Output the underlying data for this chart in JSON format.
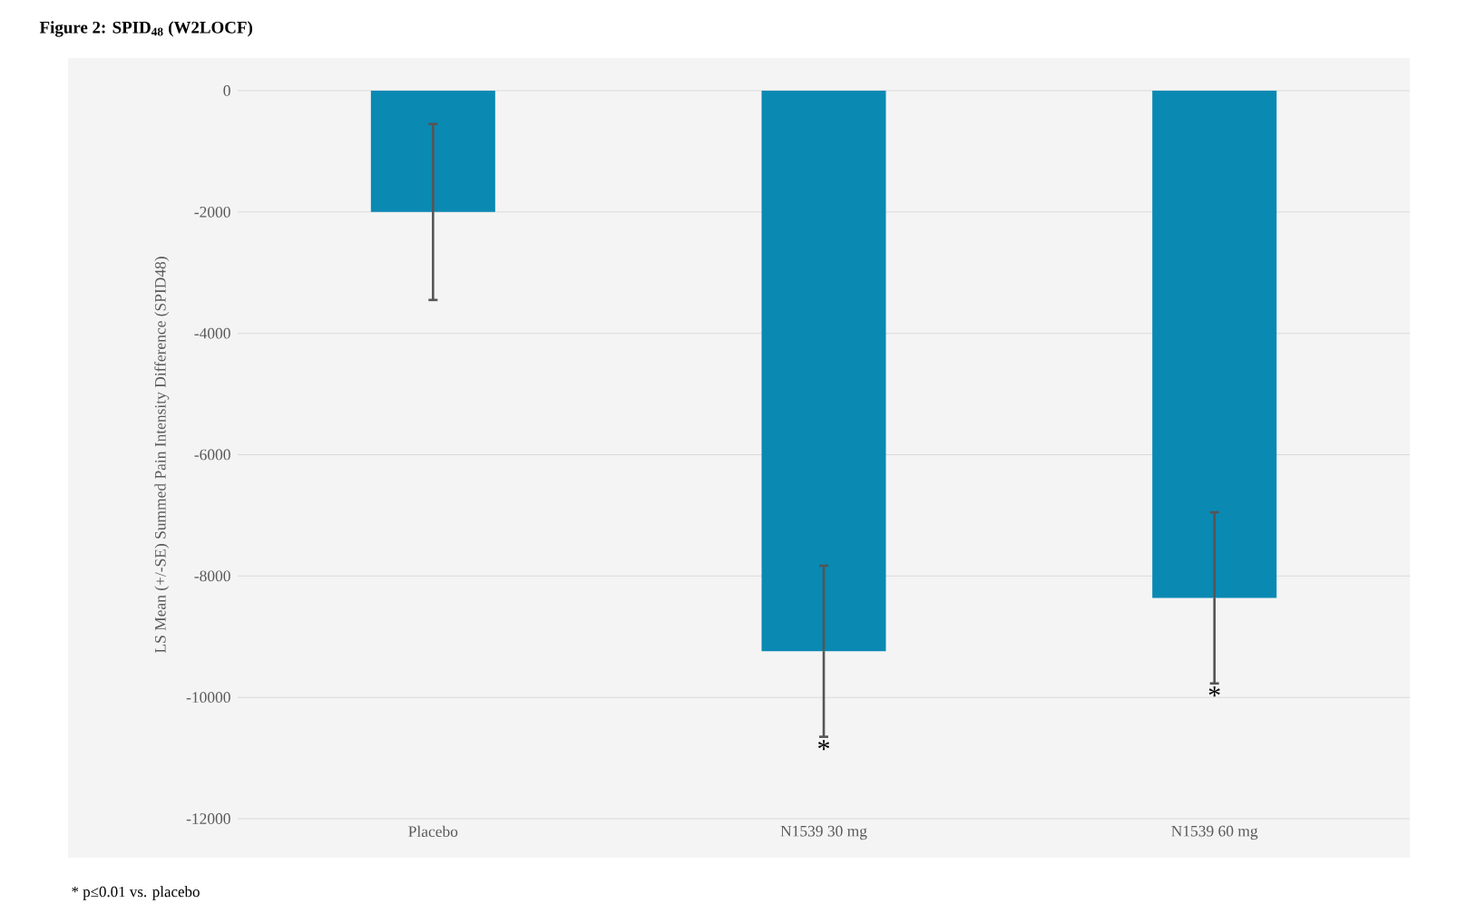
{
  "chart_data": {
    "type": "bar",
    "title": "Figure 2: SPID$_{48}$ (W2LOCF)",
    "ylabel": "LS Mean (+/-SE) Summed Pain Intensity Difference (SPID48)",
    "categories": [
      "Placebo",
      "N1539 30 mg",
      "N1539 60 mg"
    ],
    "values": [
      -2000,
      -9240,
      -8360
    ],
    "errors": [
      1450,
      1410,
      1410
    ],
    "color": "#0a89b3",
    "ylim": [
      -12000,
      0
    ],
    "yticks": [
      -12000,
      -10000,
      -8000,
      -6000,
      -4000,
      -2000,
      0
    ],
    "grid": "y",
    "annotations": [
      "*",
      "*",
      "* p≤0.01 vs. placebo"
    ]
  }
}
